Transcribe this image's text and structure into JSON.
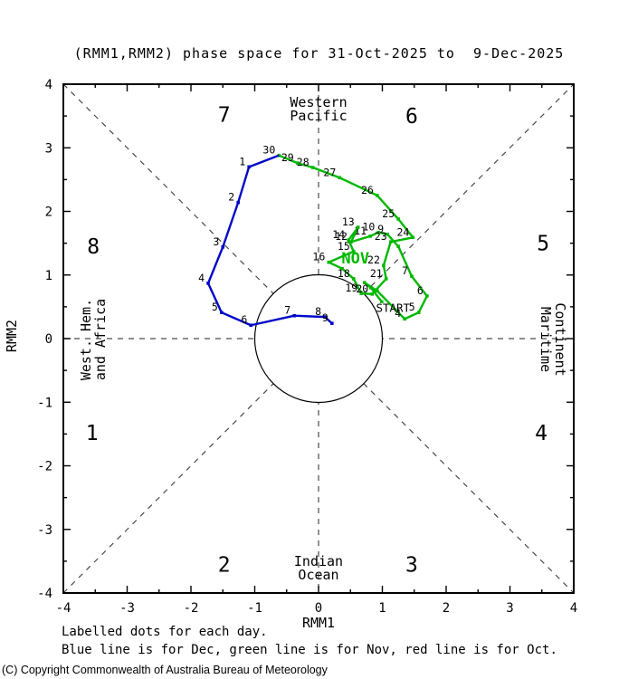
{
  "chart_data": {
    "type": "line",
    "title": "(RMM1,RMM2) phase space for 31-Oct-2025 to  9-Dec-2025",
    "xlabel": "RMM1",
    "ylabel": "RMM2",
    "xlim": [
      -4,
      4
    ],
    "ylim": [
      -4,
      4
    ],
    "major_tick": 1,
    "minor_tick": 0.5,
    "grid": false,
    "unit_circle_radius": 1,
    "colors": {
      "november_line": "#00b800",
      "december_line": "#0008c8",
      "axis": "#000000",
      "dashed_guides": "#4a4a4a"
    },
    "phase_labels": [
      {
        "n": "1",
        "x": -3.55,
        "y": -1.48
      },
      {
        "n": "2",
        "x": -1.48,
        "y": -3.55
      },
      {
        "n": "3",
        "x": 1.46,
        "y": -3.55
      },
      {
        "n": "4",
        "x": 3.49,
        "y": -1.48
      },
      {
        "n": "5",
        "x": 3.52,
        "y": 1.5
      },
      {
        "n": "6",
        "x": 1.46,
        "y": 3.5
      },
      {
        "n": "7",
        "x": -1.48,
        "y": 3.52
      },
      {
        "n": "8",
        "x": -3.53,
        "y": 1.45
      }
    ],
    "region_labels": [
      {
        "id": "top",
        "lines": [
          "Western",
          "Pacific"
        ],
        "side": "top"
      },
      {
        "id": "bottom",
        "lines": [
          "Indian",
          "Ocean"
        ],
        "side": "bottom"
      },
      {
        "id": "left",
        "lines": [
          "West. Hem.",
          "and Africa"
        ],
        "side": "left"
      },
      {
        "id": "right",
        "lines": [
          "Maritime",
          "Continent"
        ],
        "side": "right"
      }
    ],
    "annotations": [
      {
        "text": "START",
        "x": 0.9,
        "y": 0.42,
        "color": "#000000",
        "size": 12.5,
        "bold": false,
        "anchor": "start"
      },
      {
        "text": "NOV",
        "x": 0.36,
        "y": 1.18,
        "color": "#00b800",
        "size": 17,
        "bold": true,
        "anchor": "start"
      }
    ],
    "series": [
      {
        "name": "November",
        "color": "#00b800",
        "points": [
          {
            "label": "START",
            "x": 0.99,
            "y": 0.58,
            "hide": true
          },
          {
            "label": "1",
            "x": 0.82,
            "y": 0.8,
            "hide": true
          },
          {
            "label": "2",
            "x": 0.72,
            "y": 0.88,
            "hide": true
          },
          {
            "label": "3",
            "x": 0.92,
            "y": 0.75,
            "hide": true
          },
          {
            "label": "4",
            "x": 1.35,
            "y": 0.31
          },
          {
            "label": "5",
            "x": 1.57,
            "y": 0.41
          },
          {
            "label": "6",
            "x": 1.7,
            "y": 0.67
          },
          {
            "label": "7",
            "x": 1.46,
            "y": 0.98
          },
          {
            "label": "8",
            "x": 1.25,
            "y": 1.45,
            "hide": true
          },
          {
            "label": "9",
            "x": 1.08,
            "y": 1.64
          },
          {
            "label": "10",
            "x": 0.94,
            "y": 1.67
          },
          {
            "label": "11",
            "x": 0.81,
            "y": 1.61
          },
          {
            "label": "12",
            "x": 0.51,
            "y": 1.52
          },
          {
            "label": "13",
            "x": 0.62,
            "y": 1.75
          },
          {
            "label": "14",
            "x": 0.47,
            "y": 1.55
          },
          {
            "label": "15",
            "x": 0.55,
            "y": 1.37
          },
          {
            "label": "16",
            "x": 0.16,
            "y": 1.2
          },
          {
            "label": "17",
            "x": 0.37,
            "y": 1.1,
            "hide": true
          },
          {
            "label": "18",
            "x": 0.55,
            "y": 0.94
          },
          {
            "label": "19",
            "x": 0.67,
            "y": 0.71
          },
          {
            "label": "20",
            "x": 0.84,
            "y": 0.7
          },
          {
            "label": "21",
            "x": 1.06,
            "y": 0.94
          },
          {
            "label": "22",
            "x": 1.02,
            "y": 1.15
          },
          {
            "label": "23",
            "x": 1.13,
            "y": 1.52
          },
          {
            "label": "24",
            "x": 1.48,
            "y": 1.59
          },
          {
            "label": "25",
            "x": 1.25,
            "y": 1.88
          },
          {
            "label": "26",
            "x": 0.92,
            "y": 2.25
          },
          {
            "label": "27",
            "x": 0.33,
            "y": 2.53
          },
          {
            "label": "28",
            "x": -0.09,
            "y": 2.69
          },
          {
            "label": "29",
            "x": -0.33,
            "y": 2.76
          },
          {
            "label": "30",
            "x": -0.62,
            "y": 2.88
          }
        ]
      },
      {
        "name": "December",
        "color": "#0008c8",
        "points": [
          {
            "label": "",
            "x": -0.62,
            "y": 2.88,
            "hide": true,
            "no_dot": true
          },
          {
            "label": "1",
            "x": -1.09,
            "y": 2.7
          },
          {
            "label": "2",
            "x": -1.26,
            "y": 2.14
          },
          {
            "label": "3",
            "x": -1.5,
            "y": 1.44
          },
          {
            "label": "4",
            "x": -1.73,
            "y": 0.87
          },
          {
            "label": "5",
            "x": -1.52,
            "y": 0.41
          },
          {
            "label": "6",
            "x": -1.06,
            "y": 0.21
          },
          {
            "label": "7",
            "x": -0.38,
            "y": 0.36
          },
          {
            "label": "8",
            "x": 0.1,
            "y": 0.34
          },
          {
            "label": "9",
            "x": 0.21,
            "y": 0.24
          }
        ]
      }
    ],
    "legend_position": "below"
  },
  "footer": {
    "note1": "Labelled dots for each day.",
    "note2": "Blue line is for Dec, green line is for Nov, red line is for Oct."
  },
  "copyright": "(C) Copyright Commonwealth of Australia Bureau of Meteorology"
}
